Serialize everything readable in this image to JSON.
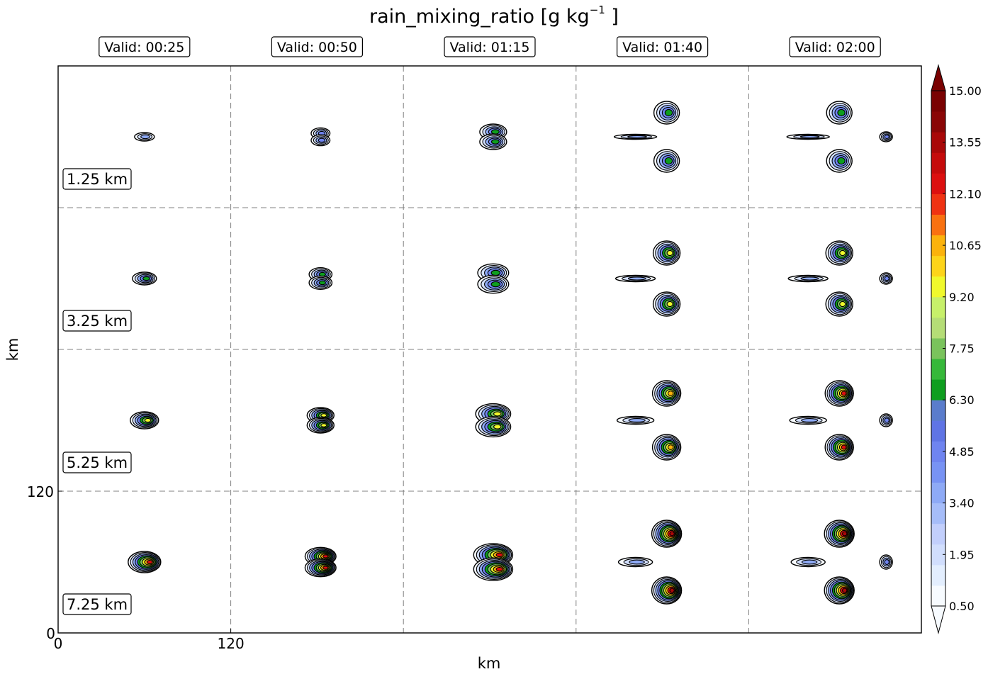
{
  "figure": {
    "title": "rain_mixing_ratio [g kg",
    "title_superscript": "−1",
    "title_suffix": " ]"
  },
  "chart_data": {
    "type": "contour-panel-grid",
    "title": "rain_mixing_ratio [g kg^-1 ]",
    "xlabel": "km",
    "ylabel": "km",
    "x_ticks": [
      "0",
      "120"
    ],
    "y_ticks": [
      "0",
      "120"
    ],
    "grid": true,
    "columns": [
      "Valid: 00:25",
      "Valid: 00:50",
      "Valid: 01:15",
      "Valid: 01:40",
      "Valid: 02:00"
    ],
    "rows": [
      "1.25 km",
      "3.25 km",
      "5.25 km",
      "7.25 km"
    ],
    "colorbar": {
      "min": 0.5,
      "max": 15.0,
      "tick_labels": [
        "15.00",
        "13.55",
        "12.10",
        "10.65",
        "9.20",
        "7.75",
        "6.30",
        "4.85",
        "3.40",
        "1.95",
        "0.50"
      ],
      "extend": "both",
      "colors": [
        "#f7fbff",
        "#e3eefe",
        "#d1defd",
        "#c2cffc",
        "#a6bdf9",
        "#8eaaf6",
        "#7893f4",
        "#6f84f0",
        "#5f74e5",
        "#5a7ccc",
        "#0e9e1f",
        "#36b83a",
        "#7ac35c",
        "#b5dd76",
        "#c7f06a",
        "#f0f92c",
        "#fdd41a",
        "#fbb20c",
        "#f97110",
        "#ef3212",
        "#dc0f0f",
        "#c50b0b",
        "#a90808",
        "#8a0606",
        "#7a0202"
      ]
    }
  }
}
